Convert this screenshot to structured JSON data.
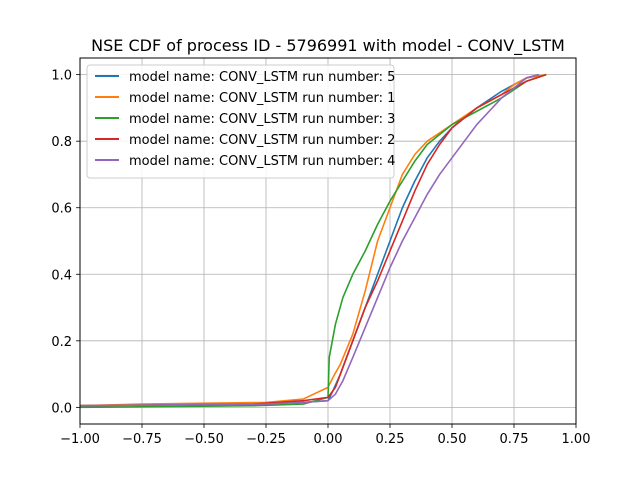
{
  "chart_data": {
    "type": "line",
    "title": "NSE CDF of process ID - 5796991 with model - CONV_LSTM",
    "xlabel": "",
    "ylabel": "",
    "xlim": [
      -1.0,
      1.0
    ],
    "ylim": [
      -0.05,
      1.05
    ],
    "x_ticks": [
      -1.0,
      -0.75,
      -0.5,
      -0.25,
      0.0,
      0.25,
      0.5,
      0.75,
      1.0
    ],
    "x_tick_labels": [
      "−1.00",
      "−0.75",
      "−0.50",
      "−0.25",
      "0.00",
      "0.25",
      "0.50",
      "0.75",
      "1.00"
    ],
    "y_ticks": [
      0.0,
      0.2,
      0.4,
      0.6,
      0.8,
      1.0
    ],
    "y_tick_labels": [
      "0.0",
      "0.2",
      "0.4",
      "0.6",
      "0.8",
      "1.0"
    ],
    "grid": true,
    "legend_position": "top-left",
    "series": [
      {
        "name": "model name: CONV_LSTM run number: 5",
        "color": "#1f77b4",
        "points": [
          [
            -1.0,
            0.005
          ],
          [
            -0.3,
            0.01
          ],
          [
            -0.1,
            0.015
          ],
          [
            0.0,
            0.02
          ],
          [
            0.02,
            0.05
          ],
          [
            0.05,
            0.1
          ],
          [
            0.1,
            0.2
          ],
          [
            0.15,
            0.3
          ],
          [
            0.2,
            0.4
          ],
          [
            0.25,
            0.5
          ],
          [
            0.3,
            0.6
          ],
          [
            0.35,
            0.68
          ],
          [
            0.4,
            0.75
          ],
          [
            0.45,
            0.8
          ],
          [
            0.5,
            0.84
          ],
          [
            0.55,
            0.87
          ],
          [
            0.6,
            0.9
          ],
          [
            0.7,
            0.95
          ],
          [
            0.8,
            0.99
          ],
          [
            0.85,
            1.0
          ]
        ]
      },
      {
        "name": "model name: CONV_LSTM run number: 1",
        "color": "#ff7f0e",
        "points": [
          [
            -1.0,
            0.005
          ],
          [
            -0.75,
            0.01
          ],
          [
            -0.25,
            0.015
          ],
          [
            -0.1,
            0.025
          ],
          [
            0.0,
            0.06
          ],
          [
            0.02,
            0.09
          ],
          [
            0.05,
            0.13
          ],
          [
            0.1,
            0.22
          ],
          [
            0.15,
            0.35
          ],
          [
            0.2,
            0.5
          ],
          [
            0.25,
            0.6
          ],
          [
            0.3,
            0.7
          ],
          [
            0.35,
            0.76
          ],
          [
            0.4,
            0.8
          ],
          [
            0.5,
            0.85
          ],
          [
            0.6,
            0.9
          ],
          [
            0.7,
            0.94
          ],
          [
            0.75,
            0.97
          ],
          [
            0.8,
            0.99
          ],
          [
            0.88,
            1.0
          ]
        ]
      },
      {
        "name": "model name: CONV_LSTM run number: 3",
        "color": "#2ca02c",
        "points": [
          [
            -1.0,
            0.0
          ],
          [
            -0.3,
            0.005
          ],
          [
            -0.1,
            0.01
          ],
          [
            0.0,
            0.03
          ],
          [
            0.005,
            0.15
          ],
          [
            0.03,
            0.25
          ],
          [
            0.06,
            0.33
          ],
          [
            0.1,
            0.4
          ],
          [
            0.15,
            0.47
          ],
          [
            0.2,
            0.55
          ],
          [
            0.25,
            0.62
          ],
          [
            0.3,
            0.68
          ],
          [
            0.35,
            0.74
          ],
          [
            0.4,
            0.79
          ],
          [
            0.5,
            0.85
          ],
          [
            0.6,
            0.89
          ],
          [
            0.7,
            0.93
          ],
          [
            0.8,
            0.98
          ],
          [
            0.88,
            1.0
          ]
        ]
      },
      {
        "name": "model name: CONV_LSTM run number: 2",
        "color": "#d62728",
        "points": [
          [
            -1.0,
            0.005
          ],
          [
            -0.3,
            0.01
          ],
          [
            -0.1,
            0.02
          ],
          [
            0.0,
            0.03
          ],
          [
            0.03,
            0.06
          ],
          [
            0.05,
            0.1
          ],
          [
            0.1,
            0.2
          ],
          [
            0.15,
            0.3
          ],
          [
            0.2,
            0.38
          ],
          [
            0.25,
            0.47
          ],
          [
            0.3,
            0.56
          ],
          [
            0.35,
            0.65
          ],
          [
            0.4,
            0.73
          ],
          [
            0.45,
            0.79
          ],
          [
            0.5,
            0.84
          ],
          [
            0.55,
            0.87
          ],
          [
            0.6,
            0.9
          ],
          [
            0.7,
            0.94
          ],
          [
            0.8,
            0.98
          ],
          [
            0.88,
            1.0
          ]
        ]
      },
      {
        "name": "model name: CONV_LSTM run number: 4",
        "color": "#9467bd",
        "points": [
          [
            -1.0,
            0.005
          ],
          [
            -0.25,
            0.01
          ],
          [
            -0.1,
            0.015
          ],
          [
            0.0,
            0.02
          ],
          [
            0.03,
            0.04
          ],
          [
            0.06,
            0.08
          ],
          [
            0.1,
            0.15
          ],
          [
            0.15,
            0.24
          ],
          [
            0.2,
            0.33
          ],
          [
            0.25,
            0.42
          ],
          [
            0.3,
            0.5
          ],
          [
            0.35,
            0.57
          ],
          [
            0.4,
            0.64
          ],
          [
            0.45,
            0.7
          ],
          [
            0.5,
            0.75
          ],
          [
            0.55,
            0.8
          ],
          [
            0.6,
            0.85
          ],
          [
            0.65,
            0.89
          ],
          [
            0.7,
            0.93
          ],
          [
            0.75,
            0.96
          ],
          [
            0.8,
            0.99
          ],
          [
            0.85,
            1.0
          ]
        ]
      }
    ]
  }
}
